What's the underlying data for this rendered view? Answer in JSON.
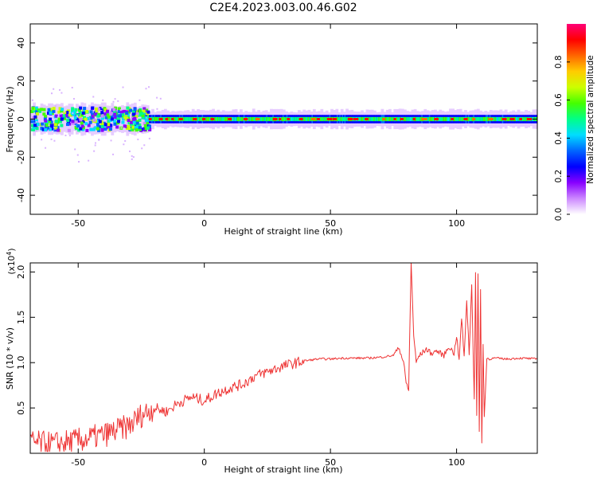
{
  "title": "C2E4.2023.003.00.46.G02",
  "chart_data": [
    {
      "type": "heatmap",
      "xlabel": "Height of straight line (km)",
      "ylabel": "Frequency (Hz)",
      "xlim": [
        -69,
        132
      ],
      "ylim": [
        -50,
        50
      ],
      "xticks": [
        -50,
        0,
        50,
        100
      ],
      "yticks": [
        40,
        20,
        0,
        -20,
        -40
      ],
      "colorbar": {
        "label": "Normalized spectral amplitude",
        "range": [
          0,
          1
        ],
        "ticks": [
          "0.0",
          "0.2",
          "0.4",
          "0.6",
          "0.8"
        ],
        "colormap": [
          "#ffffff",
          "#cc88ff",
          "#8800ff",
          "#0000ff",
          "#0066ff",
          "#00ddff",
          "#00ff88",
          "#44ff00",
          "#ccff00",
          "#ffcc00",
          "#ff6600",
          "#ff0000",
          "#ff0077"
        ]
      },
      "features": {
        "ridge_frequency_hz": 0,
        "noisy_segment_km": [
          -69,
          -22
        ],
        "clean_segment_km": [
          -22,
          132
        ],
        "scatter_extent_hz": [
          -22,
          18
        ]
      }
    },
    {
      "type": "line",
      "xlabel": "Height of straight line (km)",
      "ylabel": "SNR (10 * v/v)",
      "y_multiplier": "(x10",
      "y_multiplier_exp": "4",
      "y_multiplier_close": ")",
      "xlim": [
        -69,
        132
      ],
      "ylim": [
        0,
        2.1
      ],
      "xticks": [
        -50,
        0,
        50,
        100
      ],
      "yticks": [
        "0.5",
        "1.0",
        "1.5",
        "2.0"
      ],
      "ytick_values": [
        0.5,
        1.0,
        1.5,
        2.0
      ],
      "color": "#ee3333",
      "series": [
        {
          "x": [
            -69,
            -60,
            -50,
            -40,
            -30,
            -25,
            -20,
            -15,
            -10,
            -5,
            0,
            5,
            10,
            15,
            20,
            25,
            30,
            35,
            40,
            45,
            50,
            55,
            60,
            65,
            70,
            75,
            77,
            79,
            80,
            81,
            82,
            83,
            84,
            85,
            88,
            90,
            92,
            95,
            97,
            99,
            100,
            101,
            102,
            103,
            104,
            105,
            106,
            107,
            107.5,
            108,
            108.5,
            109,
            109.5,
            110,
            110.5,
            111,
            112,
            113,
            115,
            120,
            125,
            132
          ],
          "y": [
            0.12,
            0.1,
            0.14,
            0.2,
            0.3,
            0.42,
            0.5,
            0.46,
            0.56,
            0.62,
            0.58,
            0.66,
            0.72,
            0.76,
            0.85,
            0.9,
            0.95,
            0.99,
            1.02,
            1.04,
            1.04,
            1.05,
            1.05,
            1.05,
            1.06,
            1.08,
            1.18,
            1.0,
            0.78,
            0.7,
            2.1,
            1.3,
            1.0,
            1.07,
            1.15,
            1.1,
            1.13,
            1.08,
            1.18,
            1.1,
            1.3,
            1.02,
            1.5,
            1.05,
            1.7,
            1.1,
            1.85,
            0.6,
            2.0,
            0.4,
            1.95,
            0.25,
            1.8,
            0.1,
            1.2,
            0.4,
            1.05,
            1.04,
            1.05,
            1.04,
            1.05,
            1.04
          ]
        }
      ]
    }
  ]
}
